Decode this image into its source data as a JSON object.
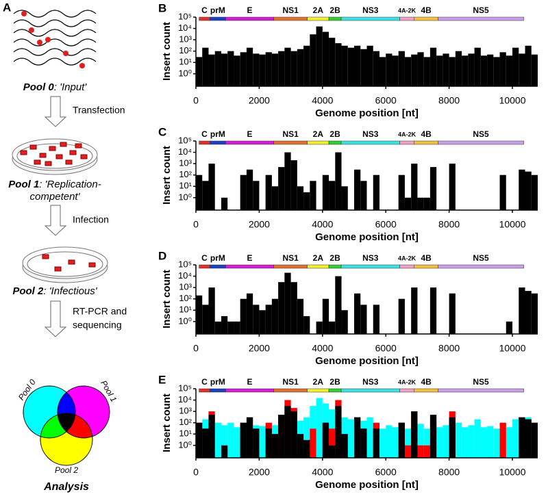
{
  "panel_a": {
    "label": "A",
    "pool0": {
      "name": "Pool 0",
      "desc": ": 'Input'"
    },
    "step1": "Transfection",
    "pool1": {
      "name": "Pool 1",
      "desc": ": 'Replication-",
      "desc2": "competent'"
    },
    "step2": "Infection",
    "pool2": {
      "name": "Pool 2",
      "desc": ": 'Infectious'"
    },
    "step3": [
      "RT-PCR and",
      "sequencing"
    ],
    "venn": [
      "Pool 0",
      "Pool 1",
      "Pool 2"
    ],
    "result": "Analysis"
  },
  "genes": [
    {
      "name": "C",
      "start": 100,
      "end": 440,
      "color": "#e0302a"
    },
    {
      "name": "prM",
      "start": 440,
      "end": 940,
      "color": "#1f3fbf"
    },
    {
      "name": "E",
      "start": 940,
      "end": 2460,
      "color": "#d020d0"
    },
    {
      "name": "NS1",
      "start": 2460,
      "end": 3520,
      "color": "#e07030"
    },
    {
      "name": "2A",
      "start": 3520,
      "end": 4200,
      "color": "#f0f030"
    },
    {
      "name": "2B",
      "start": 4200,
      "end": 4590,
      "color": "#30d030"
    },
    {
      "name": "NS3",
      "start": 4590,
      "end": 6440,
      "color": "#40e0e0"
    },
    {
      "name": "4A-2K",
      "start": 6440,
      "end": 6900,
      "color": "#f0a0c0"
    },
    {
      "name": "4B",
      "start": 6900,
      "end": 7650,
      "color": "#f0c040"
    },
    {
      "name": "NS5",
      "start": 7650,
      "end": 10360,
      "color": "#c8a0e8"
    }
  ],
  "chart_data": [
    {
      "type": "histogram",
      "label": "B",
      "xlabel": "Genome position [nt]",
      "ylabel": "Insert count",
      "log_y": true,
      "xlim": [
        0,
        10800
      ],
      "ylim": [
        0.08,
        100000
      ],
      "xticks": [
        0,
        2000,
        4000,
        6000,
        8000,
        10000
      ],
      "yticks": [
        {
          "value": 1,
          "label": "10⁰"
        },
        {
          "value": 10,
          "label": "10¹"
        },
        {
          "value": 100,
          "label": "10²"
        },
        {
          "value": 1000,
          "label": "10³"
        },
        {
          "value": 10000,
          "label": "10⁴"
        },
        {
          "value": 100000,
          "label": "10⁵"
        }
      ],
      "bins": [
        0,
        200,
        400,
        600,
        800,
        1000,
        1200,
        1400,
        1600,
        1800,
        2000,
        2200,
        2400,
        2600,
        2800,
        3000,
        3200,
        3400,
        3600,
        3800,
        4000,
        4200,
        4400,
        4600,
        4800,
        5000,
        5200,
        5400,
        5600,
        5800,
        6000,
        6200,
        6400,
        6600,
        6800,
        7000,
        7200,
        7400,
        7600,
        7800,
        8000,
        8200,
        8400,
        8600,
        8800,
        9000,
        9200,
        9400,
        9600,
        9800,
        10000,
        10200,
        10400,
        10600,
        10800
      ],
      "series": [
        {
          "color": "#000000",
          "values": [
            30,
            200,
            50,
            100,
            60,
            100,
            40,
            80,
            200,
            60,
            50,
            80,
            60,
            100,
            200,
            100,
            150,
            300,
            3000,
            15000,
            5000,
            1500,
            500,
            300,
            200,
            300,
            150,
            300,
            100,
            30,
            60,
            40,
            100,
            30,
            50,
            80,
            30,
            200,
            40,
            60,
            30,
            100,
            40,
            60,
            200,
            40,
            50,
            30,
            80,
            40,
            200,
            60,
            300,
            50
          ]
        }
      ]
    },
    {
      "type": "histogram",
      "label": "C",
      "xlabel": "Genome position [nt]",
      "ylabel": "Insert count",
      "log_y": true,
      "xlim": [
        0,
        10800
      ],
      "ylim": [
        0.08,
        100000
      ],
      "xticks": [
        0,
        2000,
        4000,
        6000,
        8000,
        10000
      ],
      "yticks": [
        {
          "value": 1,
          "label": "10⁰"
        },
        {
          "value": 10,
          "label": "10¹"
        },
        {
          "value": 100,
          "label": "10²"
        },
        {
          "value": 1000,
          "label": "10³"
        },
        {
          "value": 10000,
          "label": "10⁴"
        },
        {
          "value": 100000,
          "label": "10⁵"
        }
      ],
      "bins": [
        0,
        200,
        400,
        600,
        800,
        1000,
        1200,
        1400,
        1600,
        1800,
        2000,
        2200,
        2400,
        2600,
        2800,
        3000,
        3200,
        3400,
        3600,
        3800,
        4000,
        4200,
        4400,
        4600,
        4800,
        5000,
        5200,
        5400,
        5600,
        5800,
        6000,
        6200,
        6400,
        6600,
        6800,
        7000,
        7200,
        7400,
        7600,
        7800,
        8000,
        8200,
        8400,
        8600,
        8800,
        9000,
        9200,
        9400,
        9600,
        9800,
        10000,
        10200,
        10400,
        10600,
        10800
      ],
      "series": [
        {
          "color": "#000000",
          "values": [
            100,
            30,
            1000,
            0,
            1,
            0,
            0,
            100,
            300,
            30,
            0,
            100,
            10,
            500,
            10000,
            2000,
            10,
            3,
            30,
            0,
            100,
            30,
            10000,
            10,
            0,
            300,
            30,
            0,
            100,
            0,
            0,
            0,
            100,
            1,
            1000,
            1,
            1,
            500,
            0,
            0,
            1000,
            0,
            0,
            0,
            0,
            0,
            0,
            0,
            100,
            0,
            0,
            300,
            200,
            100
          ]
        }
      ]
    },
    {
      "type": "histogram",
      "label": "D",
      "xlabel": "Genome position [nt]",
      "ylabel": "Insert count",
      "log_y": true,
      "xlim": [
        0,
        10800
      ],
      "ylim": [
        0.08,
        100000
      ],
      "xticks": [
        0,
        2000,
        4000,
        6000,
        8000,
        10000
      ],
      "yticks": [
        {
          "value": 1,
          "label": "10⁰"
        },
        {
          "value": 10,
          "label": "10¹"
        },
        {
          "value": 100,
          "label": "10²"
        },
        {
          "value": 1000,
          "label": "10³"
        },
        {
          "value": 10000,
          "label": "10⁴"
        },
        {
          "value": 100000,
          "label": "10⁵"
        }
      ],
      "bins": [
        0,
        200,
        400,
        600,
        800,
        1000,
        1200,
        1400,
        1600,
        1800,
        2000,
        2200,
        2400,
        2600,
        2800,
        3000,
        3200,
        3400,
        3600,
        3800,
        4000,
        4200,
        4400,
        4600,
        4800,
        5000,
        5200,
        5400,
        5600,
        5800,
        6000,
        6200,
        6400,
        6600,
        6800,
        7000,
        7200,
        7400,
        7600,
        7800,
        8000,
        8200,
        8400,
        8600,
        8800,
        9000,
        9200,
        9400,
        9600,
        9800,
        10000,
        10200,
        10400,
        10600,
        10800
      ],
      "series": [
        {
          "color": "#000000",
          "values": [
            200,
            30,
            1000,
            1,
            3,
            1,
            1,
            100,
            300,
            30,
            10,
            30,
            100,
            3000,
            20000,
            3000,
            100,
            3,
            0,
            1,
            100,
            1,
            10000,
            10,
            0,
            300,
            30,
            0,
            30,
            0,
            0,
            0,
            100,
            0,
            1000,
            0,
            0,
            1000,
            0,
            0,
            300,
            0,
            0,
            0,
            0,
            0,
            0,
            0,
            0,
            1,
            0,
            1000,
            500,
            300
          ]
        }
      ]
    },
    {
      "type": "histogram",
      "label": "E",
      "xlabel": "Genome position [nt]",
      "ylabel": "Insert count",
      "log_y": true,
      "xlim": [
        0,
        10800
      ],
      "ylim": [
        0.08,
        100000
      ],
      "xticks": [
        0,
        2000,
        4000,
        6000,
        8000,
        10000
      ],
      "yticks": [
        {
          "value": 1,
          "label": "10⁰"
        },
        {
          "value": 10,
          "label": "10¹"
        },
        {
          "value": 100,
          "label": "10²"
        },
        {
          "value": 1000,
          "label": "10³"
        },
        {
          "value": 10000,
          "label": "10⁴"
        },
        {
          "value": 100000,
          "label": "10⁵"
        }
      ],
      "bins": [
        0,
        200,
        400,
        600,
        800,
        1000,
        1200,
        1400,
        1600,
        1800,
        2000,
        2200,
        2400,
        2600,
        2800,
        3000,
        3200,
        3400,
        3600,
        3800,
        4000,
        4200,
        4400,
        4600,
        4800,
        5000,
        5200,
        5400,
        5600,
        5800,
        6000,
        6200,
        6400,
        6600,
        6800,
        7000,
        7200,
        7400,
        7600,
        7800,
        8000,
        8200,
        8400,
        8600,
        8800,
        9000,
        9200,
        9400,
        9600,
        9800,
        10000,
        10200,
        10400,
        10600,
        10800
      ],
      "series": [
        {
          "color": "#00ffff",
          "values": [
            30,
            200,
            50,
            100,
            60,
            100,
            40,
            80,
            200,
            60,
            50,
            80,
            60,
            100,
            200,
            100,
            150,
            300,
            3000,
            15000,
            5000,
            1500,
            500,
            300,
            200,
            300,
            150,
            300,
            100,
            30,
            60,
            40,
            100,
            30,
            50,
            80,
            30,
            200,
            40,
            60,
            30,
            100,
            40,
            60,
            200,
            40,
            50,
            30,
            80,
            40,
            200,
            60,
            300,
            50
          ]
        },
        {
          "color": "#ff0000",
          "values": [
            100,
            30,
            1000,
            0,
            1,
            0,
            0,
            100,
            300,
            30,
            0,
            100,
            10,
            500,
            10000,
            2000,
            10,
            3,
            30,
            0,
            100,
            30,
            10000,
            10,
            0,
            300,
            30,
            0,
            100,
            0,
            0,
            0,
            100,
            1,
            1000,
            1,
            1,
            500,
            0,
            0,
            1000,
            0,
            0,
            0,
            0,
            0,
            0,
            0,
            100,
            0,
            0,
            300,
            200,
            100
          ]
        },
        {
          "color": "#000000",
          "values": [
            100,
            30,
            500,
            0,
            1,
            0,
            0,
            100,
            300,
            30,
            0,
            30,
            10,
            500,
            3000,
            1000,
            10,
            3,
            0,
            0,
            100,
            1,
            3000,
            10,
            0,
            300,
            30,
            0,
            30,
            0,
            0,
            0,
            100,
            0,
            1000,
            0,
            0,
            500,
            0,
            0,
            300,
            0,
            0,
            0,
            0,
            0,
            0,
            0,
            0,
            0,
            0,
            300,
            200,
            100
          ]
        }
      ]
    }
  ]
}
